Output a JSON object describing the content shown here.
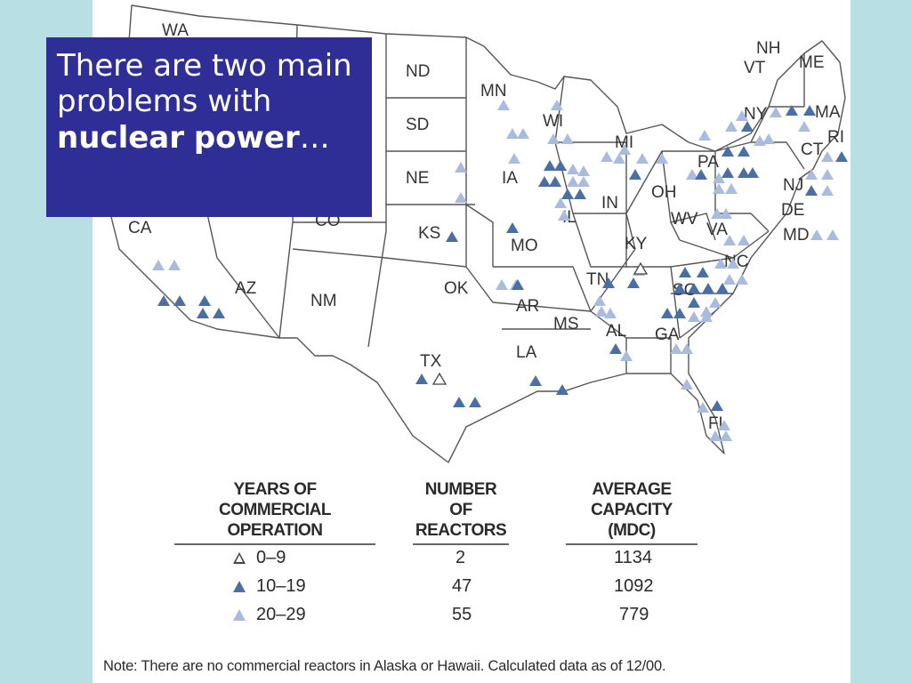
{
  "slide": {
    "title_prefix": "There are two main problems with ",
    "title_bold_1": "nuclear",
    "title_bold_2": "power",
    "title_suffix": "…"
  },
  "map": {
    "state_labels": [
      "WA",
      "ND",
      "SD",
      "NE",
      "CO",
      "CA",
      "KS",
      "AZ",
      "NM",
      "OK",
      "TX",
      "MN",
      "WI",
      "IA",
      "MO",
      "IL",
      "AR",
      "MS",
      "LA",
      "MI",
      "IN",
      "OH",
      "KY",
      "TN",
      "AL",
      "GA",
      "FL",
      "WV",
      "VA",
      "NC",
      "SC",
      "PA",
      "NY",
      "VT",
      "NH",
      "ME",
      "MA",
      "RI",
      "CT",
      "NJ",
      "DE",
      "MD"
    ],
    "colors": {
      "dark_marker": "#4a6fa5",
      "light_marker": "#a9bcdf",
      "open_marker": "#444444"
    }
  },
  "legend": {
    "headers": {
      "years_line1": "YEARS OF",
      "years_line2": "COMMERCIAL OPERATION",
      "reactors_line1": "NUMBER OF",
      "reactors_line2": "REACTORS",
      "capacity_line1": "AVERAGE",
      "capacity_line2": "CAPACITY  (MDC)"
    },
    "rows": [
      {
        "marker": "open",
        "years": "0–9",
        "reactors": "2",
        "capacity": "1134"
      },
      {
        "marker": "dark",
        "years": "10–19",
        "reactors": "47",
        "capacity": "1092"
      },
      {
        "marker": "light",
        "years": "20–29",
        "reactors": "55",
        "capacity": "779"
      }
    ]
  },
  "note": "Note: There are no commercial reactors in Alaska or Hawaii. Calculated data as of 12/00."
}
